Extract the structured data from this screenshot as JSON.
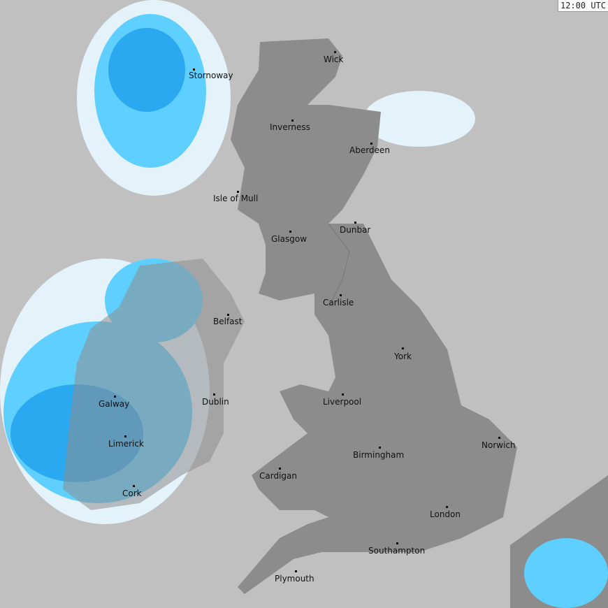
{
  "timestamp": "12:00 UTC",
  "colors": {
    "sea": "#c0c0c0",
    "land": "#8c8c8c",
    "radar_light": "#e4f2fa",
    "radar_mid": "#5fcfff",
    "radar_strong": "#2aa8f0",
    "radar_heavy": "#3a7fd0"
  },
  "cities": [
    {
      "name": "Stornoway"
    },
    {
      "name": "Wick"
    },
    {
      "name": "Inverness"
    },
    {
      "name": "Aberdeen"
    },
    {
      "name": "Isle of Mull"
    },
    {
      "name": "Glasgow"
    },
    {
      "name": "Dunbar"
    },
    {
      "name": "Belfast"
    },
    {
      "name": "Carlisle"
    },
    {
      "name": "York"
    },
    {
      "name": "Galway"
    },
    {
      "name": "Dublin"
    },
    {
      "name": "Liverpool"
    },
    {
      "name": "Limerick"
    },
    {
      "name": "Norwich"
    },
    {
      "name": "Birmingham"
    },
    {
      "name": "Cardigan"
    },
    {
      "name": "Cork"
    },
    {
      "name": "London"
    },
    {
      "name": "Southampton"
    },
    {
      "name": "Plymouth"
    }
  ]
}
